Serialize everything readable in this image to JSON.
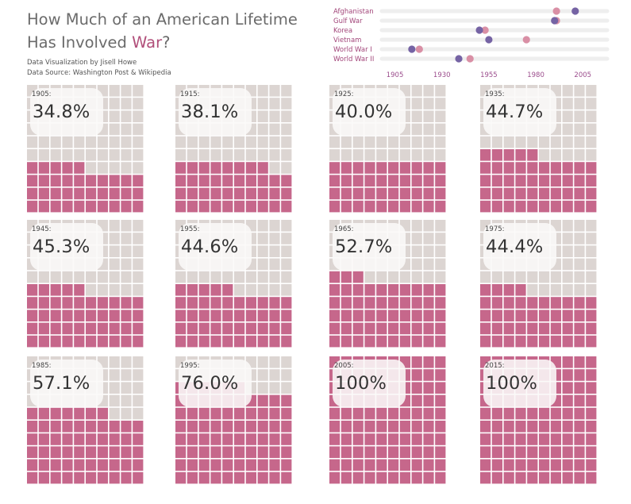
{
  "title": {
    "line1": "How Much of an American Lifetime",
    "line2_prefix": "Has Involved ",
    "line2_highlight": "War",
    "line2_suffix": "?"
  },
  "credits": {
    "author": "Data Visualization by Jisell Howe",
    "source": "Data Source: Washington Post & Wikipedia"
  },
  "colors": {
    "war": "#c6678b",
    "peace": "#dcd5d2",
    "start_dot": "#7563a4",
    "end_dot": "#d98fa5",
    "label": "#a2467a",
    "axis_label": "#9b4c8c"
  },
  "chart_data": [
    {
      "type": "scatter",
      "subtype": "dumbbell",
      "categories": [
        "Afghanistan",
        "Gulf War",
        "Korea",
        "Vietnam",
        "World War I",
        "World War II"
      ],
      "start": [
        2001,
        1990,
        1950,
        1955,
        1914,
        1939
      ],
      "end": [
        1991,
        1991,
        1953,
        1975,
        1918,
        1945
      ],
      "x_ticks": [
        1905,
        1930,
        1955,
        1980,
        2005
      ],
      "xlim": [
        1898,
        2018
      ]
    },
    {
      "type": "waffle",
      "grid": "10x10",
      "items": [
        {
          "year": "1905:",
          "label": "34.8%",
          "value": 34.8
        },
        {
          "year": "1915:",
          "label": "38.1%",
          "value": 38.1
        },
        {
          "year": "1925:",
          "label": "40.0%",
          "value": 40.0
        },
        {
          "year": "1935:",
          "label": "44.7%",
          "value": 44.7
        },
        {
          "year": "1945:",
          "label": "45.3%",
          "value": 45.3
        },
        {
          "year": "1955:",
          "label": "44.6%",
          "value": 44.6
        },
        {
          "year": "1965:",
          "label": "52.7%",
          "value": 52.7
        },
        {
          "year": "1975:",
          "label": "44.4%",
          "value": 44.4
        },
        {
          "year": "1985:",
          "label": "57.1%",
          "value": 57.1
        },
        {
          "year": "1995:",
          "label": "76.0%",
          "value": 76.0
        },
        {
          "year": "2005:",
          "label": "100%",
          "value": 100
        },
        {
          "year": "2015:",
          "label": "100%",
          "value": 100
        }
      ]
    }
  ]
}
